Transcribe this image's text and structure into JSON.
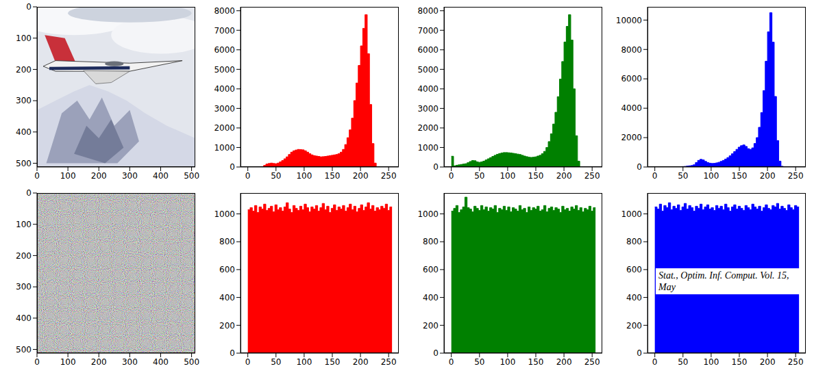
{
  "chart_data": [
    {
      "type": "image",
      "xlim": [
        0,
        512
      ],
      "ylim": [
        512,
        0
      ],
      "xticks": [
        0,
        100,
        200,
        300,
        400,
        500
      ],
      "yticks": [
        0,
        100,
        200,
        300,
        400,
        500
      ]
    },
    {
      "type": "histogram",
      "color": "#ff0000",
      "xlim": [
        -13,
        268
      ],
      "xticks": [
        0,
        50,
        100,
        150,
        200,
        250
      ],
      "ylim": [
        0,
        8200
      ],
      "yticks": [
        0,
        1000,
        2000,
        3000,
        4000,
        5000,
        6000,
        7000,
        8000
      ],
      "bins": [
        0,
        4,
        8,
        12,
        16,
        20,
        24,
        28,
        32,
        36,
        40,
        44,
        48,
        52,
        56,
        60,
        64,
        68,
        72,
        76,
        80,
        84,
        88,
        92,
        96,
        100,
        104,
        108,
        112,
        116,
        120,
        124,
        128,
        132,
        136,
        140,
        144,
        148,
        152,
        156,
        160,
        164,
        168,
        172,
        176,
        180,
        184,
        188,
        192,
        196,
        200,
        204,
        208,
        212,
        216,
        220,
        224,
        228,
        232,
        236,
        240,
        244,
        248,
        252,
        256
      ],
      "counts": [
        0,
        0,
        0,
        0,
        0,
        0,
        20,
        80,
        150,
        180,
        200,
        180,
        170,
        200,
        260,
        330,
        420,
        520,
        640,
        760,
        830,
        870,
        900,
        890,
        880,
        830,
        760,
        680,
        620,
        580,
        560,
        540,
        520,
        530,
        540,
        560,
        580,
        600,
        620,
        640,
        680,
        760,
        900,
        1150,
        1500,
        1900,
        2500,
        3400,
        4300,
        5200,
        6200,
        7100,
        7800,
        5800,
        3200,
        1200,
        200,
        0,
        0,
        0,
        0,
        0,
        0,
        0
      ]
    },
    {
      "type": "histogram",
      "color": "#008000",
      "xlim": [
        -13,
        268
      ],
      "xticks": [
        0,
        50,
        100,
        150,
        200,
        250
      ],
      "ylim": [
        0,
        8200
      ],
      "yticks": [
        0,
        1000,
        2000,
        3000,
        4000,
        5000,
        6000,
        7000,
        8000
      ],
      "bins": [
        0,
        4,
        8,
        12,
        16,
        20,
        24,
        28,
        32,
        36,
        40,
        44,
        48,
        52,
        56,
        60,
        64,
        68,
        72,
        76,
        80,
        84,
        88,
        92,
        96,
        100,
        104,
        108,
        112,
        116,
        120,
        124,
        128,
        132,
        136,
        140,
        144,
        148,
        152,
        156,
        160,
        164,
        168,
        172,
        176,
        180,
        184,
        188,
        192,
        196,
        200,
        204,
        208,
        212,
        216,
        220,
        224,
        228,
        232,
        236,
        240,
        244,
        248,
        252,
        256
      ],
      "counts": [
        550,
        60,
        90,
        110,
        130,
        150,
        170,
        220,
        280,
        330,
        320,
        260,
        240,
        260,
        300,
        360,
        420,
        480,
        540,
        600,
        650,
        690,
        720,
        740,
        740,
        730,
        720,
        700,
        680,
        660,
        640,
        600,
        560,
        530,
        500,
        490,
        500,
        520,
        560,
        600,
        680,
        800,
        1000,
        1300,
        1700,
        2200,
        2800,
        3600,
        4500,
        5400,
        6400,
        7200,
        7800,
        6500,
        4000,
        1600,
        300,
        0,
        0,
        0,
        0,
        0,
        0,
        0
      ]
    },
    {
      "type": "histogram",
      "color": "#0000ff",
      "xlim": [
        -13,
        268
      ],
      "xticks": [
        0,
        50,
        100,
        150,
        200,
        250
      ],
      "ylim": [
        0,
        10900
      ],
      "yticks": [
        0,
        2000,
        4000,
        6000,
        8000,
        10000
      ],
      "bins": [
        0,
        4,
        8,
        12,
        16,
        20,
        24,
        28,
        32,
        36,
        40,
        44,
        48,
        52,
        56,
        60,
        64,
        68,
        72,
        76,
        80,
        84,
        88,
        92,
        96,
        100,
        104,
        108,
        112,
        116,
        120,
        124,
        128,
        132,
        136,
        140,
        144,
        148,
        152,
        156,
        160,
        164,
        168,
        172,
        176,
        180,
        184,
        188,
        192,
        196,
        200,
        204,
        208,
        212,
        216,
        220,
        224,
        228,
        232,
        236,
        240,
        244,
        248,
        252,
        256
      ],
      "counts": [
        0,
        0,
        0,
        0,
        0,
        0,
        0,
        0,
        10,
        10,
        20,
        20,
        30,
        40,
        60,
        80,
        100,
        150,
        300,
        450,
        520,
        480,
        380,
        300,
        260,
        240,
        250,
        280,
        320,
        380,
        450,
        540,
        640,
        760,
        900,
        1050,
        1200,
        1350,
        1450,
        1500,
        1400,
        1250,
        1200,
        1300,
        1600,
        2000,
        2700,
        3700,
        5200,
        7200,
        9200,
        10500,
        8500,
        4800,
        1800,
        400,
        50,
        0,
        0,
        0,
        0,
        0,
        0,
        0
      ]
    },
    {
      "type": "image",
      "xlim": [
        0,
        512
      ],
      "ylim": [
        512,
        0
      ],
      "xticks": [
        0,
        100,
        200,
        300,
        400,
        500
      ],
      "yticks": [
        0,
        100,
        200,
        300,
        400,
        500
      ]
    },
    {
      "type": "histogram",
      "color": "#ff0000",
      "xlim": [
        -13,
        268
      ],
      "xticks": [
        0,
        50,
        100,
        150,
        200,
        250
      ],
      "ylim": [
        0,
        1150
      ],
      "yticks": [
        0,
        200,
        400,
        600,
        800,
        1000
      ],
      "bins": [
        0,
        4,
        8,
        12,
        16,
        20,
        24,
        28,
        32,
        36,
        40,
        44,
        48,
        52,
        56,
        60,
        64,
        68,
        72,
        76,
        80,
        84,
        88,
        92,
        96,
        100,
        104,
        108,
        112,
        116,
        120,
        124,
        128,
        132,
        136,
        140,
        144,
        148,
        152,
        156,
        160,
        164,
        168,
        172,
        176,
        180,
        184,
        188,
        192,
        196,
        200,
        204,
        208,
        212,
        216,
        220,
        224,
        228,
        232,
        236,
        240,
        244,
        248,
        252,
        256
      ],
      "counts": [
        1030,
        1045,
        1020,
        1060,
        1010,
        1050,
        1035,
        1070,
        1025,
        1040,
        1055,
        1015,
        1065,
        1030,
        1045,
        1020,
        1050,
        1080,
        1035,
        1010,
        1060,
        1040,
        1025,
        1055,
        1030,
        1070,
        1045,
        1015,
        1050,
        1035,
        1060,
        1020,
        1045,
        1075,
        1030,
        1055,
        1010,
        1040,
        1065,
        1025,
        1050,
        1035,
        1060,
        1020,
        1045,
        1070,
        1030,
        1055,
        1015,
        1040,
        1065,
        1025,
        1050,
        1080,
        1035,
        1060,
        1020,
        1045,
        1030,
        1055,
        1040,
        1070,
        1025,
        1050
      ]
    },
    {
      "type": "histogram",
      "color": "#008000",
      "xlim": [
        -13,
        268
      ],
      "xticks": [
        0,
        50,
        100,
        150,
        200,
        250
      ],
      "ylim": [
        0,
        1150
      ],
      "yticks": [
        0,
        200,
        400,
        600,
        800,
        1000
      ],
      "bins": [
        0,
        4,
        8,
        12,
        16,
        20,
        24,
        28,
        32,
        36,
        40,
        44,
        48,
        52,
        56,
        60,
        64,
        68,
        72,
        76,
        80,
        84,
        88,
        92,
        96,
        100,
        104,
        108,
        112,
        116,
        120,
        124,
        128,
        132,
        136,
        140,
        144,
        148,
        152,
        156,
        160,
        164,
        168,
        172,
        176,
        180,
        184,
        188,
        192,
        196,
        200,
        204,
        208,
        212,
        216,
        220,
        224,
        228,
        232,
        236,
        240,
        244,
        248,
        252,
        256
      ],
      "counts": [
        1020,
        1040,
        1060,
        1010,
        1030,
        1050,
        1120,
        1045,
        1035,
        1015,
        1055,
        1040,
        1025,
        1060,
        1030,
        1050,
        1020,
        1045,
        1035,
        1060,
        1010,
        1040,
        1030,
        1055,
        1025,
        1050,
        1015,
        1045,
        1035,
        1020,
        1060,
        1030,
        1040,
        1010,
        1050,
        1025,
        1045,
        1035,
        1055,
        1020,
        1030,
        1060,
        1015,
        1040,
        1050,
        1025,
        1045,
        1035,
        1010,
        1055,
        1030,
        1040,
        1020,
        1050,
        1035,
        1060,
        1025,
        1045,
        1015,
        1040,
        1030,
        1055,
        1020,
        1045
      ]
    },
    {
      "type": "histogram",
      "color": "#0000ff",
      "xlim": [
        -13,
        268
      ],
      "xticks": [
        0,
        50,
        100,
        150,
        200,
        250
      ],
      "ylim": [
        0,
        1150
      ],
      "yticks": [
        0,
        200,
        400,
        600,
        800,
        1000
      ],
      "bins": [
        0,
        4,
        8,
        12,
        16,
        20,
        24,
        28,
        32,
        36,
        40,
        44,
        48,
        52,
        56,
        60,
        64,
        68,
        72,
        76,
        80,
        84,
        88,
        92,
        96,
        100,
        104,
        108,
        112,
        116,
        120,
        124,
        128,
        132,
        136,
        140,
        144,
        148,
        152,
        156,
        160,
        164,
        168,
        172,
        176,
        180,
        184,
        188,
        192,
        196,
        200,
        204,
        208,
        212,
        216,
        220,
        224,
        228,
        232,
        236,
        240,
        244,
        248,
        252,
        256
      ],
      "counts": [
        1050,
        1035,
        1070,
        1020,
        1060,
        1045,
        1080,
        1030,
        1055,
        1040,
        1065,
        1025,
        1050,
        1075,
        1035,
        1060,
        1045,
        1020,
        1055,
        1040,
        1070,
        1030,
        1050,
        1065,
        1035,
        1045,
        1025,
        1060,
        1040,
        1055,
        1030,
        1070,
        1045,
        1020,
        1050,
        1065,
        1035,
        1055,
        1040,
        1025,
        1060,
        1045,
        1030,
        1070,
        1050,
        1035,
        1055,
        1020,
        1045,
        1065,
        1040,
        1030,
        1060,
        1050,
        1075,
        1035,
        1055,
        1040,
        1025,
        1065,
        1045,
        1030,
        1060,
        1050
      ],
      "annotation": "Stat., Optim. Inf. Comput. Vol. 15, May"
    }
  ]
}
